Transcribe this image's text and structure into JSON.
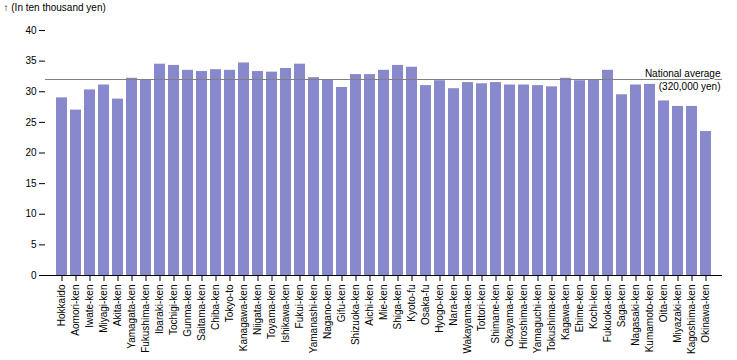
{
  "chart_data": {
    "type": "bar",
    "categories": [
      "Hokkaido",
      "Aomori-ken",
      "Iwate-ken",
      "Miyagi-ken",
      "Akita-ken",
      "Yamagata-ken",
      "Fukushima-ken",
      "Ibaraki-ken",
      "Tochigi-ken",
      "Gunma-ken",
      "Saitama-ken",
      "Chiba-ken",
      "Tokyo-to",
      "Kanagawa-ken",
      "Niigata-ken",
      "Toyama-ken",
      "Ishikawa-ken",
      "Fukui-ken",
      "Yamanashi-ken",
      "Nagano-ken",
      "Gifu-ken",
      "Shizuoka-ken",
      "Aichi-ken",
      "Mie-ken",
      "Shiga-ken",
      "Kyoto-fu",
      "Osaka-fu",
      "Hyogo-ken",
      "Nara-ken",
      "Wakayama-ken",
      "Tottori-ken",
      "Shimane-ken",
      "Okayama-ken",
      "Hiroshima-ken",
      "Yamaguchi-ken",
      "Tokushima-ken",
      "Kagawa-ken",
      "Ehime-ken",
      "Kochi-ken",
      "Fukuoka-ken",
      "Saga-ken",
      "Nagasaki-ken",
      "Kumamoto-ken",
      "Oita-ken",
      "Miyazaki-ken",
      "Kagoshima-ken",
      "Okinawa-ken"
    ],
    "values": [
      29.0,
      27.0,
      30.3,
      31.1,
      28.8,
      32.2,
      32.0,
      34.5,
      34.3,
      33.5,
      33.3,
      33.6,
      33.5,
      34.7,
      33.3,
      33.2,
      33.8,
      34.5,
      32.3,
      32.0,
      30.7,
      32.8,
      32.8,
      33.5,
      34.3,
      34.0,
      31.0,
      31.8,
      30.5,
      31.5,
      31.3,
      31.5,
      31.1,
      31.1,
      31.0,
      30.8,
      32.2,
      31.8,
      32.0,
      33.5,
      29.5,
      31.1,
      31.2,
      28.5,
      27.6,
      27.6,
      23.5
    ],
    "color": "#8888cc",
    "ylabel": "(In ten thousand yen)",
    "ylim": [
      0,
      40
    ],
    "yticks": [
      0,
      5,
      10,
      15,
      20,
      25,
      30,
      35,
      40
    ],
    "grid": false,
    "reference_line": {
      "value": 32.0,
      "labels": [
        "National average",
        "(320,000 yen)"
      ]
    }
  }
}
